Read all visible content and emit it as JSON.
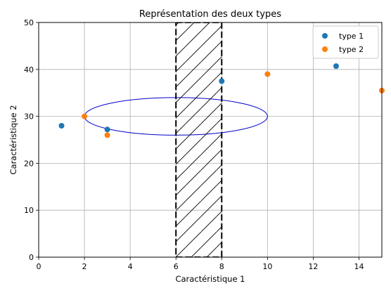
{
  "chart_data": {
    "type": "scatter",
    "title": "Représentation des deux types",
    "xlabel": "Caractéristique 1",
    "ylabel": "Caractéristique 2",
    "xlim": [
      0,
      15
    ],
    "ylim": [
      0,
      50
    ],
    "xticks": [
      0,
      2,
      4,
      6,
      8,
      10,
      12,
      14
    ],
    "yticks": [
      0,
      10,
      20,
      30,
      40,
      50
    ],
    "grid": true,
    "legend_position": "top-right",
    "series": [
      {
        "name": "type 1",
        "color": "#1f77b4",
        "points": [
          {
            "x": 1,
            "y": 28
          },
          {
            "x": 3,
            "y": 27.2
          },
          {
            "x": 8,
            "y": 37.5
          },
          {
            "x": 13,
            "y": 40.7
          }
        ]
      },
      {
        "name": "type 2",
        "color": "#ff7f0e",
        "points": [
          {
            "x": 2,
            "y": 30
          },
          {
            "x": 3,
            "y": 26
          },
          {
            "x": 10,
            "y": 39
          },
          {
            "x": 15,
            "y": 35.5
          }
        ]
      }
    ],
    "annotations": [
      {
        "kind": "ellipse",
        "cx": 6,
        "cy": 30,
        "rx": 4,
        "ry": 4,
        "color": "#0000cc"
      },
      {
        "kind": "hatched-band",
        "x0": 6,
        "x1": 8,
        "y0": 0,
        "y1": 50,
        "color": "#000000"
      }
    ]
  }
}
